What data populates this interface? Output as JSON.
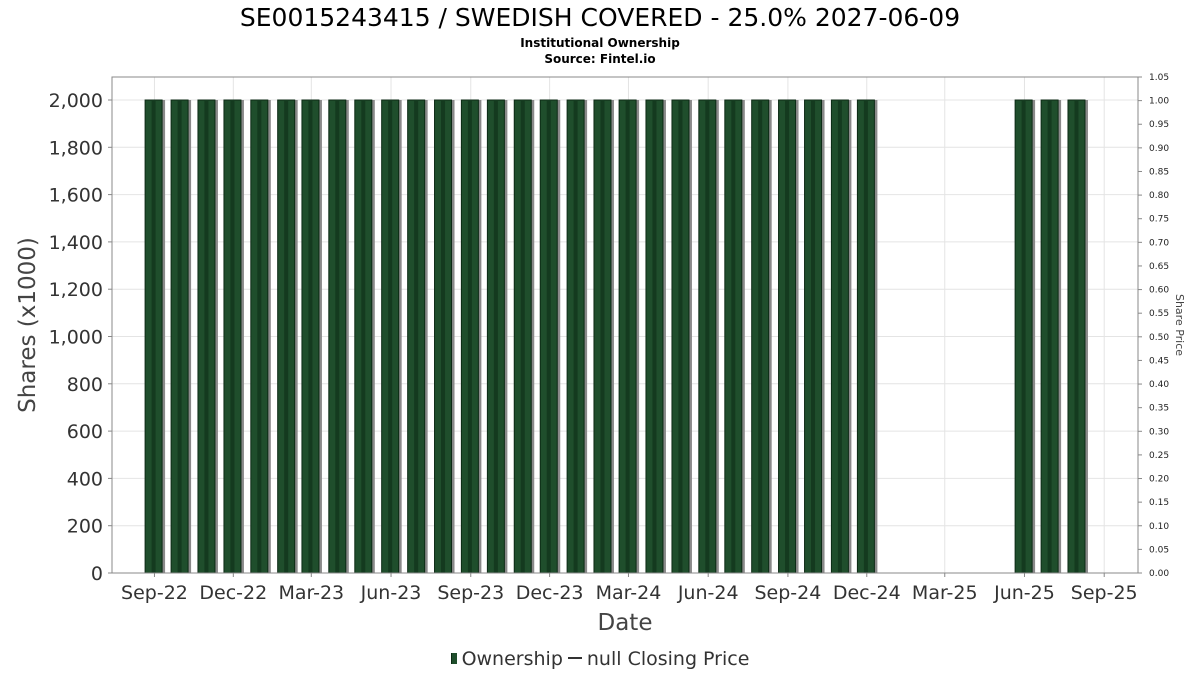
{
  "title": "SE0015243415 / SWEDISH COVERED - 25.0% 2027-06-09",
  "subtitle": "Institutional Ownership",
  "source": "Source: Fintel.io",
  "chart_data": {
    "type": "bar",
    "xlabel": "Date",
    "ylabel": "Shares (x1000)",
    "ylabel_right": "Share Price",
    "ylim": [
      0,
      2000
    ],
    "ylim_right": [
      0,
      1.05
    ],
    "yticks_left": [
      "0",
      "200",
      "400",
      "600",
      "800",
      "1,000",
      "1,200",
      "1,400",
      "1,600",
      "1,800",
      "2,000"
    ],
    "yticks_right": [
      "0.00",
      "0.05",
      "0.10",
      "0.15",
      "0.20",
      "0.25",
      "0.30",
      "0.35",
      "0.40",
      "0.45",
      "0.50",
      "0.55",
      "0.60",
      "0.65",
      "0.70",
      "0.75",
      "0.80",
      "0.85",
      "0.90",
      "0.95",
      "1.00",
      "1.05"
    ],
    "xticks": [
      "Sep-22",
      "Dec-22",
      "Mar-23",
      "Jun-23",
      "Sep-23",
      "Dec-23",
      "Mar-24",
      "Jun-24",
      "Sep-24",
      "Dec-24",
      "Mar-25",
      "Jun-25",
      "Sep-25"
    ],
    "x_range": [
      "2022-07-14",
      "2025-10-10"
    ],
    "grid": true,
    "legend_position": "bottom",
    "legend": [
      "Ownership",
      "null Closing Price"
    ],
    "series": [
      {
        "name": "Ownership",
        "color": "#1f4e2c",
        "dates": [
          "2022-08-31",
          "2022-09-30",
          "2022-10-31",
          "2022-11-30",
          "2022-12-31",
          "2023-01-31",
          "2023-02-28",
          "2023-03-31",
          "2023-04-30",
          "2023-05-31",
          "2023-06-30",
          "2023-07-31",
          "2023-08-31",
          "2023-09-30",
          "2023-10-31",
          "2023-11-30",
          "2023-12-31",
          "2024-01-31",
          "2024-02-29",
          "2024-03-31",
          "2024-04-30",
          "2024-05-31",
          "2024-06-30",
          "2024-07-31",
          "2024-08-31",
          "2024-09-30",
          "2024-10-31",
          "2024-11-30",
          "2025-05-31",
          "2025-06-30",
          "2025-07-31"
        ],
        "values": [
          2000,
          2000,
          2000,
          2000,
          2000,
          2000,
          2000,
          2000,
          2000,
          2000,
          2000,
          2000,
          2000,
          2000,
          2000,
          2000,
          2000,
          2000,
          2000,
          2000,
          2000,
          2000,
          2000,
          2000,
          2000,
          2000,
          2000,
          2000,
          2000,
          2000,
          2000
        ]
      },
      {
        "name": "null Closing Price",
        "color": "#333333",
        "values": []
      }
    ]
  }
}
